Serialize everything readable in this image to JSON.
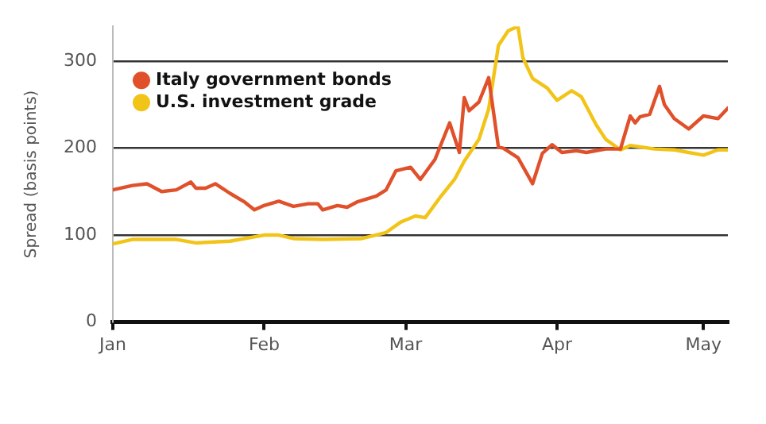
{
  "chart_data": {
    "type": "line",
    "ylabel": "Spread (basis points)",
    "xlim": [
      "--01-01",
      "--05-06"
    ],
    "xticks": [
      {
        "value": "--01-01",
        "label": "Jan"
      },
      {
        "value": "--02-01",
        "label": "Feb"
      },
      {
        "value": "--03-01",
        "label": "Mar"
      },
      {
        "value": "--04-01",
        "label": "Apr"
      },
      {
        "value": "--05-01",
        "label": "May"
      }
    ],
    "ylim": [
      0,
      340
    ],
    "yticks": [
      0,
      100,
      200,
      300
    ],
    "grid": "y",
    "legend": "top left",
    "marker": "none",
    "line_style": "solid",
    "series": [
      {
        "name": "Italy government bonds",
        "color": "#e0502a",
        "x": [
          "--01-01",
          "--01-05",
          "--01-08",
          "--01-11",
          "--01-14",
          "--01-17",
          "--01-18",
          "--01-20",
          "--01-22",
          "--01-25",
          "--01-28",
          "--01-30",
          "--02-01",
          "--02-04",
          "--02-07",
          "--02-10",
          "--02-12",
          "--02-13",
          "--02-16",
          "--02-18",
          "--02-20",
          "--02-24",
          "--02-26",
          "--02-28",
          "--03-02",
          "--03-04",
          "--03-07",
          "--03-10",
          "--03-12",
          "--03-13",
          "--03-14",
          "--03-16",
          "--03-18",
          "--03-20",
          "--03-21",
          "--03-24",
          "--03-27",
          "--03-29",
          "--03-31",
          "--04-02",
          "--04-05",
          "--04-07",
          "--04-11",
          "--04-14",
          "--04-16",
          "--04-17",
          "--04-18",
          "--04-20",
          "--04-22",
          "--04-23",
          "--04-25",
          "--04-28",
          "--05-01",
          "--05-04",
          "--05-06"
        ],
        "values": [
          152,
          157,
          159,
          150,
          152,
          161,
          154,
          154,
          159,
          148,
          138,
          129,
          134,
          139,
          133,
          136,
          136,
          129,
          134,
          132,
          138,
          145,
          152,
          174,
          178,
          164,
          187,
          229,
          195,
          258,
          243,
          253,
          281,
          201,
          200,
          189,
          159,
          194,
          204,
          195,
          197,
          195,
          199,
          199,
          237,
          229,
          236,
          239,
          271,
          250,
          234,
          222,
          237,
          234,
          246
        ]
      },
      {
        "name": "U.S. investment grade",
        "color": "#f2c417",
        "x": [
          "--01-01",
          "--01-05",
          "--01-14",
          "--01-18",
          "--01-25",
          "--02-01",
          "--02-04",
          "--02-07",
          "--02-13",
          "--02-21",
          "--02-26",
          "--02-29",
          "--03-03",
          "--03-05",
          "--03-08",
          "--03-11",
          "--03-13",
          "--03-16",
          "--03-18",
          "--03-20",
          "--03-22",
          "--03-24",
          "--03-25",
          "--03-27",
          "--03-30",
          "--04-01",
          "--04-04",
          "--04-06",
          "--04-09",
          "--04-11",
          "--04-14",
          "--04-16",
          "--04-21",
          "--04-25",
          "--05-01",
          "--05-04",
          "--05-06"
        ],
        "values": [
          90,
          95,
          95,
          91,
          93,
          100,
          100,
          96,
          95,
          96,
          103,
          115,
          122,
          120,
          143,
          164,
          185,
          210,
          245,
          318,
          335,
          340,
          304,
          280,
          269,
          255,
          266,
          259,
          227,
          210,
          198,
          203,
          199,
          198,
          192,
          198,
          198
        ]
      }
    ]
  }
}
